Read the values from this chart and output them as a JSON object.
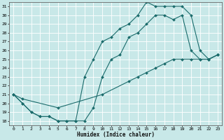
{
  "xlabel": "Humidex (Indice chaleur)",
  "bg_color": "#c8e8e8",
  "grid_color": "#ffffff",
  "line_color": "#1a6b6b",
  "marker": "D",
  "marker_size": 2.0,
  "linewidth": 0.8,
  "xlim": [
    -0.5,
    23.5
  ],
  "ylim": [
    17.5,
    31.5
  ],
  "xticks": [
    0,
    1,
    2,
    3,
    4,
    5,
    6,
    7,
    8,
    9,
    10,
    11,
    12,
    13,
    14,
    15,
    16,
    17,
    18,
    19,
    20,
    21,
    22,
    23
  ],
  "yticks": [
    18,
    19,
    20,
    21,
    22,
    23,
    24,
    25,
    26,
    27,
    28,
    29,
    30,
    31
  ],
  "line1_x": [
    0,
    1,
    2,
    3,
    4,
    5,
    6,
    7,
    8,
    9,
    10,
    11,
    12,
    13,
    14,
    15,
    16,
    17,
    18,
    19,
    20,
    21,
    22,
    23
  ],
  "line1_y": [
    21,
    20,
    19,
    18.5,
    18.5,
    18,
    18,
    18,
    18,
    19.5,
    23,
    25,
    25.5,
    27.5,
    28,
    29,
    30,
    30,
    29.5,
    30,
    26,
    25,
    25,
    25.5
  ],
  "line2_x": [
    0,
    1,
    2,
    3,
    4,
    5,
    6,
    7,
    8,
    9,
    10,
    11,
    12,
    13,
    14,
    15,
    16,
    17,
    18,
    19,
    20,
    21,
    22,
    23
  ],
  "line2_y": [
    21,
    20,
    19,
    18.5,
    18.5,
    18,
    18,
    18,
    23,
    25,
    27,
    27.5,
    28.5,
    29,
    30,
    31.5,
    31,
    31,
    31,
    31,
    30,
    26,
    25,
    25.5
  ],
  "line3_x": [
    0,
    1,
    5,
    10,
    13,
    14,
    15,
    16,
    17,
    18,
    19,
    20,
    21,
    22,
    23
  ],
  "line3_y": [
    21,
    20.5,
    19.5,
    21,
    22.5,
    23,
    23.5,
    24,
    24.5,
    25,
    25,
    25,
    25,
    25,
    25.5
  ],
  "xlabel_fontsize": 5.5,
  "tick_fontsize": 4.5
}
